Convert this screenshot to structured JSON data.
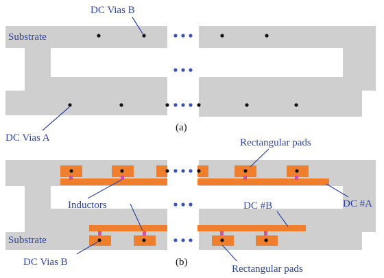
{
  "colors": {
    "substrate": "#cfcfcf",
    "pad": "#f07f2d",
    "inductor": "#d0509a",
    "label_blue": "#2f45a3",
    "via": "#111111",
    "ellipsis": "#3a52b3"
  },
  "panel_a": {
    "label_vias_b": "DC Vias B",
    "label_substrate": "Substrate",
    "label_vias_a": "DC Vias A",
    "caption": "(a)"
  },
  "panel_b": {
    "label_rect_pads_top": "Rectangular pads",
    "label_inductors": "Inductors",
    "label_dc_a": "DC #A",
    "label_dc_b": "DC #B",
    "label_substrate": "Substrate",
    "label_vias_b": "DC Vias B",
    "label_rect_pads_bottom": "Rectangular pads",
    "caption": "(b)"
  }
}
